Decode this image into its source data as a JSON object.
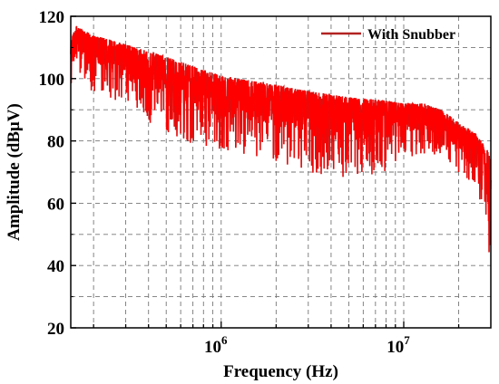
{
  "chart_data": {
    "type": "line",
    "title": "",
    "xlabel": "Frequency (Hz)",
    "ylabel": "Amplitude (dBμV)",
    "x_scale": "log",
    "xlim": [
      150000,
      30000000
    ],
    "ylim": [
      20,
      120
    ],
    "x_ticks": [
      {
        "value": 1000000,
        "base": "10",
        "exp": "6"
      },
      {
        "value": 10000000,
        "base": "10",
        "exp": "7"
      }
    ],
    "y_ticks": [
      20,
      40,
      60,
      80,
      100,
      120
    ],
    "grid": true,
    "legend_position": "top-right",
    "series": [
      {
        "name": "With Snubber",
        "color": "#ff0000",
        "edge_color": "#b22222",
        "envelope_upper": [
          [
            150000,
            112
          ],
          [
            160000,
            117
          ],
          [
            200000,
            114
          ],
          [
            300000,
            111
          ],
          [
            500000,
            107
          ],
          [
            700000,
            104
          ],
          [
            1000000,
            101
          ],
          [
            2000000,
            98
          ],
          [
            3000000,
            96
          ],
          [
            5000000,
            94
          ],
          [
            8000000,
            93
          ],
          [
            10000000,
            92
          ],
          [
            13000000,
            92
          ],
          [
            16000000,
            90
          ],
          [
            20000000,
            86
          ],
          [
            25000000,
            82
          ],
          [
            28000000,
            78
          ],
          [
            30000000,
            75
          ]
        ],
        "envelope_lower": [
          [
            150000,
            98
          ],
          [
            200000,
            96
          ],
          [
            300000,
            90
          ],
          [
            500000,
            83
          ],
          [
            700000,
            79
          ],
          [
            1000000,
            77
          ],
          [
            2000000,
            73
          ],
          [
            3000000,
            70
          ],
          [
            5000000,
            68
          ],
          [
            8000000,
            70
          ],
          [
            10000000,
            73
          ],
          [
            13000000,
            76
          ],
          [
            16000000,
            74
          ],
          [
            20000000,
            70
          ],
          [
            25000000,
            65
          ],
          [
            28000000,
            55
          ],
          [
            30000000,
            30
          ]
        ]
      }
    ]
  }
}
